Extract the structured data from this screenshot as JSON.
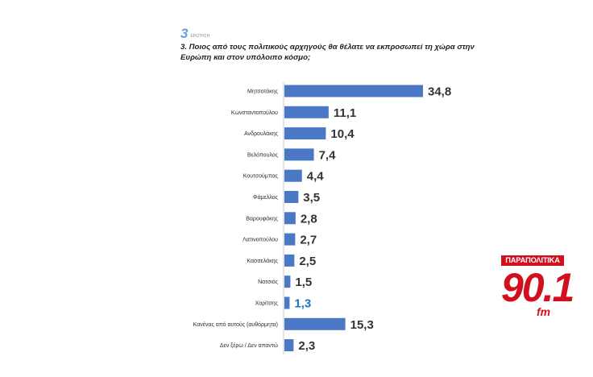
{
  "header": {
    "question_number": "3",
    "question_word": "ΕΡΩΤΗΣΗ",
    "question_text": "3. Ποιος από τους πολιτικούς αρχηγούς θα θέλατε να εκπροσωπεί τη χώρα στην Ευρώπη και στον υπόλοιπο κόσμο;"
  },
  "logo": {
    "band_text": "ΠΑΡΑΠΟΛΙΤΙΚΑ",
    "number_text": "90.1",
    "unit_text": "fm"
  },
  "colors": {
    "bar": "#4a78c4",
    "bar_dark": "#3763ad",
    "label": "#2b2b2b",
    "value": "#333333",
    "value_highlight": "#1a73c8",
    "axis": "#c9c9c9",
    "brand_red": "#d40f1d"
  },
  "chart_data": {
    "type": "bar",
    "orientation": "horizontal",
    "categories": [
      "Μητσοτάκης",
      "Κωνσταντοπούλου",
      "Ανδρουλάκης",
      "Βελόπουλος",
      "Κουτσούμπας",
      "Φάμελλος",
      "Βαρουφάκης",
      "Λατινοπούλου",
      "Κασσελάκης",
      "Νατσιός",
      "Χαρίτσης",
      "Κανένας από αυτούς (αυθόρμητα)",
      "Δεν ξέρω / Δεν απαντώ"
    ],
    "values": [
      34.8,
      11.1,
      10.4,
      7.4,
      4.4,
      3.5,
      2.8,
      2.7,
      2.5,
      1.5,
      1.3,
      15.3,
      2.3
    ],
    "value_labels": [
      "34,8",
      "11,1",
      "10,4",
      "7,4",
      "4,4",
      "3,5",
      "2,8",
      "2,7",
      "2,5",
      "1,5",
      "1,3",
      "15,3",
      "2,3"
    ],
    "highlight_index": 10,
    "xlim": [
      0,
      34.8
    ],
    "grid": false,
    "legend": "none"
  }
}
